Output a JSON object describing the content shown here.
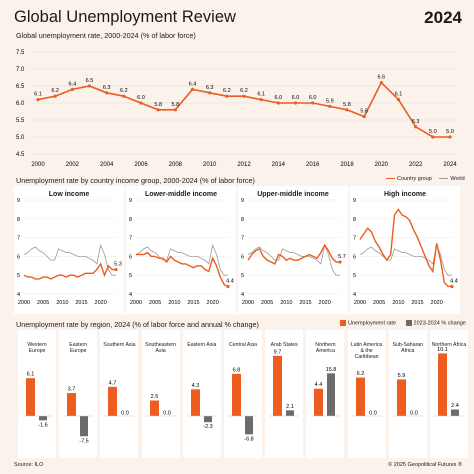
{
  "header": {
    "title": "Global Unemployment Review",
    "year": "2024"
  },
  "sections": {
    "global": "Global unemployment rate, 2000-2024 (% of labor force)",
    "income": "Unemployment rate by country income group, 2000-2024 (% of labor force)",
    "region": "Unemployment rate by region, 2024 (% of labor force and annual % change)"
  },
  "legends": {
    "country_group": "Country group",
    "world": "World",
    "rate": "Unemployment rate",
    "change": "2023-2024 % change"
  },
  "footer": {
    "source": "Source: ILO",
    "copyright": "© 2025 Geopolitical Futures ®"
  },
  "colors": {
    "accent": "#ec5d1f",
    "world": "#9a9a9a",
    "change": "#6b6b6b",
    "background": "#fbf2ec"
  },
  "chart_data": [
    {
      "type": "line",
      "title": "Global unemployment rate, 2000-2024 (% of labor force)",
      "x": [
        2000,
        2001,
        2002,
        2003,
        2004,
        2005,
        2006,
        2007,
        2008,
        2009,
        2010,
        2011,
        2012,
        2013,
        2014,
        2015,
        2016,
        2017,
        2018,
        2019,
        2020,
        2021,
        2022,
        2023,
        2024
      ],
      "series": [
        {
          "values": [
            6.1,
            6.2,
            6.4,
            6.5,
            6.3,
            6.2,
            6.0,
            5.8,
            5.8,
            6.4,
            6.3,
            6.2,
            6.2,
            6.1,
            6.0,
            6.0,
            6.0,
            5.9,
            5.8,
            5.6,
            6.6,
            6.1,
            5.3,
            5.0,
            5.0
          ]
        }
      ],
      "labels": [
        "6.1",
        "6.2",
        "6.4",
        "6.5",
        "6.3",
        "6.2",
        "6.0",
        "5.8",
        "5.8",
        "6.4",
        "6.3",
        "6.2",
        "6.2",
        "6.1",
        "6.0",
        "6.0",
        "6.0",
        "5.9",
        "5.8",
        "5.6",
        "6.6",
        "6.1",
        "5.3",
        "5.0",
        "5.0"
      ],
      "xticks": [
        "2000",
        "2002",
        "2004",
        "2006",
        "2008",
        "2010",
        "2012",
        "2014",
        "2016",
        "2018",
        "2020",
        "2022",
        "2024"
      ],
      "yticks": [
        "4.5",
        "5.0",
        "5.5",
        "6.0",
        "6.5",
        "7.0",
        "7.5"
      ],
      "ylim": [
        4.5,
        7.5
      ],
      "grid": true
    },
    {
      "type": "line",
      "title": "Unemployment rate by country income group, 2000-2024 (% of labor force)",
      "x": [
        2000,
        2001,
        2002,
        2003,
        2004,
        2005,
        2006,
        2007,
        2008,
        2009,
        2010,
        2011,
        2012,
        2013,
        2014,
        2015,
        2016,
        2017,
        2018,
        2019,
        2020,
        2021,
        2022,
        2023,
        2024
      ],
      "ylim": [
        4,
        9
      ],
      "yticks": [
        "4",
        "5",
        "6",
        "7",
        "8",
        "9"
      ],
      "xticks": [
        "2000",
        "2005",
        "2010",
        "2015",
        "2020"
      ],
      "world": [
        6.1,
        6.2,
        6.4,
        6.5,
        6.3,
        6.2,
        6.0,
        5.8,
        5.8,
        6.4,
        6.3,
        6.2,
        6.2,
        6.1,
        6.0,
        6.0,
        6.0,
        5.9,
        5.8,
        5.6,
        6.6,
        6.1,
        5.3,
        5.0,
        5.0
      ],
      "panels": [
        {
          "name": "Low income",
          "end_label": "5.3",
          "values": [
            5.0,
            4.9,
            4.9,
            4.8,
            4.8,
            4.9,
            4.9,
            4.8,
            4.9,
            5.0,
            5.0,
            4.9,
            5.0,
            5.0,
            4.9,
            5.0,
            5.1,
            5.1,
            5.1,
            5.3,
            5.6,
            5.0,
            5.5,
            5.3,
            5.3
          ]
        },
        {
          "name": "Lower-middle income",
          "end_label": "4.4",
          "values": [
            6.1,
            6.1,
            6.1,
            6.2,
            6.0,
            6.0,
            5.9,
            5.9,
            5.7,
            6.0,
            5.8,
            5.7,
            5.6,
            5.6,
            5.5,
            5.4,
            5.5,
            5.5,
            5.3,
            5.2,
            5.9,
            5.5,
            4.9,
            4.5,
            4.4
          ]
        },
        {
          "name": "Upper-middle income",
          "end_label": "5.7",
          "values": [
            5.8,
            6.1,
            6.3,
            6.4,
            6.0,
            5.8,
            5.7,
            5.6,
            6.1,
            6.0,
            5.8,
            5.9,
            5.8,
            5.8,
            5.9,
            6.0,
            6.1,
            6.0,
            5.9,
            6.2,
            6.6,
            6.3,
            5.9,
            5.7,
            5.7
          ]
        },
        {
          "name": "High income",
          "end_label": "4.4",
          "values": [
            6.9,
            7.2,
            7.5,
            7.3,
            6.8,
            6.5,
            6.1,
            5.8,
            6.1,
            8.2,
            8.5,
            8.2,
            8.1,
            7.9,
            7.4,
            7.0,
            6.5,
            6.0,
            5.5,
            5.2,
            6.7,
            5.8,
            4.6,
            4.4,
            4.4
          ]
        }
      ]
    },
    {
      "type": "bar",
      "title": "Unemployment rate by region, 2024 (% of labor force and annual % change)",
      "categories": [
        "Western Europe",
        "Eastern Europe",
        "Southern Asia",
        "Southeastern Asia",
        "Eastern Asia",
        "Central Asia",
        "Arab States",
        "Northern America",
        "Latin America & the Caribbean",
        "Sub-Saharan Africa",
        "Northern Africa"
      ],
      "series": [
        {
          "name": "Unemployment rate",
          "values": [
            6.1,
            3.7,
            4.7,
            2.5,
            4.3,
            6.8,
            9.7,
            4.4,
            6.2,
            5.9,
            10.1
          ]
        },
        {
          "name": "2023-2024 % change",
          "values": [
            -1.6,
            -7.5,
            0.0,
            0.0,
            -2.3,
            -6.8,
            2.1,
            15.8,
            0.0,
            0.0,
            2.4
          ]
        }
      ],
      "rate_labels": [
        "6.1",
        "3.7",
        "4.7",
        "2.5",
        "4.3",
        "6.8",
        "9.7",
        "4.4",
        "6.2",
        "5.9",
        "10.1"
      ],
      "change_labels": [
        "-1.6",
        "-7.5",
        "0.0",
        "0.0",
        "-2.3",
        "-6.8",
        "2.1",
        "15.8",
        "0.0",
        "0.0",
        "2.4"
      ]
    }
  ]
}
